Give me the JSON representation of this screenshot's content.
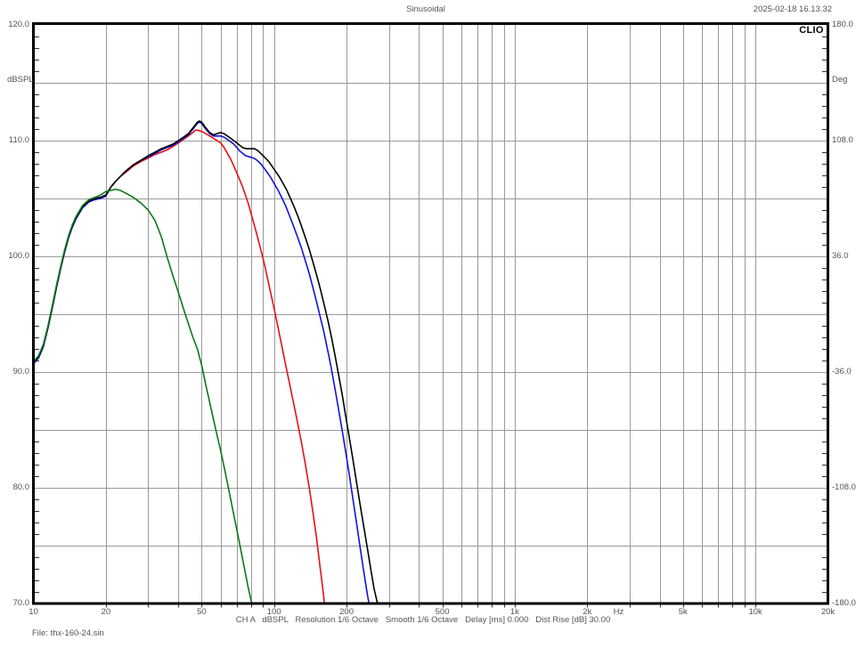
{
  "header": {
    "title": "Sinusoidal",
    "datetime": "2025-02-18 16.13.32",
    "brand": "CLIO"
  },
  "footer": {
    "status_segments": [
      "CH A",
      "dBSPL",
      "Resolution 1/6 Octave",
      "Smooth 1/6 Octave",
      "Delay [ms] 0.000",
      "Dist Rise [dB] 30.00"
    ],
    "file_label": "File: thx-160-24.sin"
  },
  "chart_data": {
    "type": "line",
    "title": "Sinusoidal",
    "x_axis": {
      "scale": "log",
      "unit": "Hz",
      "min": 10,
      "max": 20000,
      "tick_labels": [
        {
          "f": 10,
          "label": "10"
        },
        {
          "f": 20,
          "label": "20"
        },
        {
          "f": 50,
          "label": "50"
        },
        {
          "f": 100,
          "label": "100"
        },
        {
          "f": 200,
          "label": "200"
        },
        {
          "f": 500,
          "label": "500"
        },
        {
          "f": 1000,
          "label": "1k"
        },
        {
          "f": 2000,
          "label": "2k"
        },
        {
          "f": 5000,
          "label": "5k"
        },
        {
          "f": 10000,
          "label": "10k"
        },
        {
          "f": 20000,
          "label": "20k"
        }
      ],
      "unit_label_f": 2700,
      "gridlines": [
        20,
        30,
        40,
        50,
        60,
        70,
        80,
        90,
        100,
        200,
        300,
        400,
        500,
        600,
        700,
        800,
        900,
        1000,
        2000,
        3000,
        4000,
        5000,
        6000,
        7000,
        8000,
        9000,
        10000
      ]
    },
    "y_axis_left": {
      "label": "dBSPL",
      "min": 70,
      "max": 120,
      "gridline_step": 5,
      "tick_values": [
        120,
        110,
        100,
        90,
        80,
        70
      ],
      "tick_labels": [
        "120.0",
        "110.0",
        "100.0",
        "90.0",
        "80.0",
        "70.0"
      ]
    },
    "y_axis_right": {
      "label": "Deg",
      "min": -180,
      "max": 180,
      "tick_values": [
        180,
        108,
        36,
        -36,
        -108,
        -180
      ],
      "tick_labels": [
        "180.0",
        "108.0",
        "36.0",
        "-36.0",
        "-108.0",
        "-180.0"
      ]
    },
    "grid": true,
    "legend": "none",
    "colors": {
      "grid": "#999999",
      "frame": "#000000",
      "text": "#555555"
    },
    "series": [
      {
        "name": "red",
        "color": "#e51212",
        "points": [
          [
            10,
            90.8
          ],
          [
            10.5,
            91.3
          ],
          [
            11,
            92.3
          ],
          [
            11.5,
            93.9
          ],
          [
            12,
            95.7
          ],
          [
            12.5,
            97.5
          ],
          [
            13,
            99.1
          ],
          [
            13.5,
            100.5
          ],
          [
            14,
            101.7
          ],
          [
            14.5,
            102.6
          ],
          [
            15,
            103.3
          ],
          [
            16,
            104.3
          ],
          [
            17,
            104.8
          ],
          [
            18,
            105.0
          ],
          [
            19,
            105.1
          ],
          [
            20,
            105.3
          ],
          [
            21,
            106.0
          ],
          [
            22,
            106.5
          ],
          [
            23,
            106.9
          ],
          [
            24,
            107.2
          ],
          [
            26,
            107.8
          ],
          [
            28,
            108.2
          ],
          [
            30,
            108.5
          ],
          [
            32,
            108.8
          ],
          [
            34,
            109.0
          ],
          [
            36,
            109.2
          ],
          [
            38,
            109.5
          ],
          [
            40,
            109.8
          ],
          [
            42,
            110.1
          ],
          [
            44,
            110.4
          ],
          [
            46,
            110.7
          ],
          [
            47,
            110.9
          ],
          [
            48,
            110.9
          ],
          [
            50,
            110.8
          ],
          [
            52,
            110.6
          ],
          [
            55,
            110.3
          ],
          [
            58,
            110.0
          ],
          [
            60,
            109.8
          ],
          [
            62,
            109.4
          ],
          [
            64,
            108.9
          ],
          [
            66,
            108.4
          ],
          [
            68,
            107.8
          ],
          [
            70,
            107.2
          ],
          [
            72,
            106.6
          ],
          [
            74,
            106.0
          ],
          [
            76,
            105.3
          ],
          [
            78,
            104.6
          ],
          [
            80,
            103.8
          ],
          [
            82,
            103.0
          ],
          [
            84,
            102.2
          ],
          [
            86,
            101.4
          ],
          [
            88,
            100.6
          ],
          [
            90,
            99.8
          ],
          [
            93,
            98.5
          ],
          [
            96,
            97.2
          ],
          [
            100,
            95.5
          ],
          [
            104,
            93.8
          ],
          [
            108,
            92.1
          ],
          [
            112,
            90.5
          ],
          [
            116,
            89.0
          ],
          [
            120,
            87.5
          ],
          [
            125,
            85.7
          ],
          [
            130,
            83.9
          ],
          [
            135,
            82.0
          ],
          [
            140,
            80.0
          ],
          [
            145,
            77.9
          ],
          [
            150,
            75.7
          ],
          [
            155,
            73.3
          ],
          [
            158,
            71.9
          ],
          [
            162,
            70.0
          ]
        ]
      },
      {
        "name": "blue",
        "color": "#1212dd",
        "points": [
          [
            10,
            90.7
          ],
          [
            10.5,
            91.2
          ],
          [
            11,
            92.2
          ],
          [
            11.5,
            93.8
          ],
          [
            12,
            95.6
          ],
          [
            12.5,
            97.4
          ],
          [
            13,
            99.0
          ],
          [
            13.5,
            100.4
          ],
          [
            14,
            101.6
          ],
          [
            14.5,
            102.5
          ],
          [
            15,
            103.2
          ],
          [
            16,
            104.2
          ],
          [
            17,
            104.7
          ],
          [
            18,
            104.9
          ],
          [
            19,
            105.0
          ],
          [
            20,
            105.2
          ],
          [
            21,
            106.0
          ],
          [
            22,
            106.5
          ],
          [
            24,
            107.3
          ],
          [
            26,
            107.9
          ],
          [
            28,
            108.3
          ],
          [
            30,
            108.6
          ],
          [
            32,
            108.9
          ],
          [
            34,
            109.2
          ],
          [
            36,
            109.4
          ],
          [
            38,
            109.6
          ],
          [
            40,
            109.9
          ],
          [
            42,
            110.2
          ],
          [
            44,
            110.5
          ],
          [
            46,
            111.0
          ],
          [
            48,
            111.5
          ],
          [
            49,
            111.6
          ],
          [
            50,
            111.5
          ],
          [
            52,
            111.0
          ],
          [
            54,
            110.6
          ],
          [
            56,
            110.4
          ],
          [
            58,
            110.4
          ],
          [
            60,
            110.4
          ],
          [
            62,
            110.3
          ],
          [
            64,
            110.1
          ],
          [
            66,
            109.9
          ],
          [
            68,
            109.7
          ],
          [
            70,
            109.4
          ],
          [
            72,
            109.1
          ],
          [
            74,
            108.9
          ],
          [
            76,
            108.7
          ],
          [
            79,
            108.6
          ],
          [
            82,
            108.5
          ],
          [
            85,
            108.3
          ],
          [
            88,
            108.0
          ],
          [
            91,
            107.6
          ],
          [
            94,
            107.2
          ],
          [
            97,
            106.8
          ],
          [
            100,
            106.3
          ],
          [
            104,
            105.7
          ],
          [
            108,
            105.0
          ],
          [
            112,
            104.3
          ],
          [
            116,
            103.5
          ],
          [
            120,
            102.7
          ],
          [
            125,
            101.7
          ],
          [
            130,
            100.7
          ],
          [
            135,
            99.6
          ],
          [
            140,
            98.5
          ],
          [
            145,
            97.3
          ],
          [
            150,
            96.1
          ],
          [
            155,
            94.9
          ],
          [
            160,
            93.7
          ],
          [
            165,
            92.4
          ],
          [
            170,
            91.1
          ],
          [
            175,
            89.7
          ],
          [
            180,
            88.3
          ],
          [
            186,
            86.6
          ],
          [
            192,
            84.9
          ],
          [
            198,
            83.2
          ],
          [
            205,
            81.2
          ],
          [
            212,
            79.2
          ],
          [
            220,
            77.0
          ],
          [
            228,
            74.8
          ],
          [
            236,
            72.7
          ],
          [
            244,
            70.8
          ],
          [
            248,
            70.0
          ]
        ]
      },
      {
        "name": "black",
        "color": "#000000",
        "points": [
          [
            10,
            90.8
          ],
          [
            10.5,
            91.3
          ],
          [
            11,
            92.3
          ],
          [
            11.5,
            93.9
          ],
          [
            12,
            95.7
          ],
          [
            12.5,
            97.5
          ],
          [
            13,
            99.1
          ],
          [
            13.5,
            100.5
          ],
          [
            14,
            101.7
          ],
          [
            14.5,
            102.6
          ],
          [
            15,
            103.3
          ],
          [
            16,
            104.3
          ],
          [
            17,
            104.8
          ],
          [
            18,
            105.0
          ],
          [
            19,
            105.1
          ],
          [
            20,
            105.3
          ],
          [
            21,
            106.0
          ],
          [
            22,
            106.5
          ],
          [
            24,
            107.3
          ],
          [
            26,
            107.9
          ],
          [
            28,
            108.3
          ],
          [
            30,
            108.7
          ],
          [
            32,
            109.0
          ],
          [
            34,
            109.3
          ],
          [
            36,
            109.5
          ],
          [
            38,
            109.7
          ],
          [
            40,
            110.0
          ],
          [
            42,
            110.3
          ],
          [
            44,
            110.6
          ],
          [
            46,
            111.1
          ],
          [
            48,
            111.6
          ],
          [
            49,
            111.7
          ],
          [
            50,
            111.6
          ],
          [
            52,
            111.1
          ],
          [
            54,
            110.7
          ],
          [
            56,
            110.5
          ],
          [
            58,
            110.6
          ],
          [
            60,
            110.7
          ],
          [
            62,
            110.6
          ],
          [
            64,
            110.4
          ],
          [
            66,
            110.2
          ],
          [
            68,
            110.0
          ],
          [
            70,
            109.8
          ],
          [
            72,
            109.6
          ],
          [
            74,
            109.4
          ],
          [
            77,
            109.3
          ],
          [
            80,
            109.3
          ],
          [
            83,
            109.3
          ],
          [
            86,
            109.1
          ],
          [
            89,
            108.8
          ],
          [
            92,
            108.5
          ],
          [
            95,
            108.2
          ],
          [
            98,
            107.8
          ],
          [
            101,
            107.4
          ],
          [
            105,
            106.9
          ],
          [
            109,
            106.3
          ],
          [
            113,
            105.7
          ],
          [
            117,
            105.0
          ],
          [
            121,
            104.3
          ],
          [
            126,
            103.4
          ],
          [
            131,
            102.4
          ],
          [
            136,
            101.4
          ],
          [
            141,
            100.4
          ],
          [
            146,
            99.3
          ],
          [
            151,
            98.2
          ],
          [
            156,
            97.1
          ],
          [
            162,
            95.7
          ],
          [
            168,
            94.3
          ],
          [
            174,
            92.8
          ],
          [
            180,
            91.2
          ],
          [
            186,
            89.6
          ],
          [
            192,
            88.0
          ],
          [
            198,
            86.3
          ],
          [
            205,
            84.4
          ],
          [
            212,
            82.6
          ],
          [
            220,
            80.5
          ],
          [
            228,
            78.5
          ],
          [
            236,
            76.6
          ],
          [
            244,
            74.8
          ],
          [
            252,
            73.0
          ],
          [
            260,
            71.3
          ],
          [
            269,
            70.0
          ]
        ]
      },
      {
        "name": "green",
        "color": "#0a7a14",
        "points": [
          [
            10,
            90.9
          ],
          [
            10.5,
            91.4
          ],
          [
            11,
            92.4
          ],
          [
            11.5,
            94.0
          ],
          [
            12,
            95.8
          ],
          [
            12.5,
            97.6
          ],
          [
            13,
            99.2
          ],
          [
            13.5,
            100.6
          ],
          [
            14,
            101.8
          ],
          [
            14.5,
            102.7
          ],
          [
            15,
            103.4
          ],
          [
            16,
            104.4
          ],
          [
            17,
            104.9
          ],
          [
            18,
            105.1
          ],
          [
            19,
            105.3
          ],
          [
            20,
            105.6
          ],
          [
            21,
            105.7
          ],
          [
            22,
            105.8
          ],
          [
            23,
            105.7
          ],
          [
            24,
            105.5
          ],
          [
            25,
            105.3
          ],
          [
            26,
            105.1
          ],
          [
            28,
            104.6
          ],
          [
            30,
            104.0
          ],
          [
            32,
            103.1
          ],
          [
            34,
            101.7
          ],
          [
            36,
            99.9
          ],
          [
            38,
            98.3
          ],
          [
            40,
            96.9
          ],
          [
            42,
            95.5
          ],
          [
            44,
            94.2
          ],
          [
            46,
            93.0
          ],
          [
            48,
            92.0
          ],
          [
            50,
            90.6
          ],
          [
            52,
            88.9
          ],
          [
            54,
            87.4
          ],
          [
            56,
            85.9
          ],
          [
            58,
            84.5
          ],
          [
            60,
            83.2
          ],
          [
            63,
            81.1
          ],
          [
            66,
            79.0
          ],
          [
            69,
            77.0
          ],
          [
            72,
            75.1
          ],
          [
            75,
            73.2
          ],
          [
            78,
            71.4
          ],
          [
            80,
            70.4
          ],
          [
            80.8,
            70.0
          ]
        ]
      }
    ]
  }
}
